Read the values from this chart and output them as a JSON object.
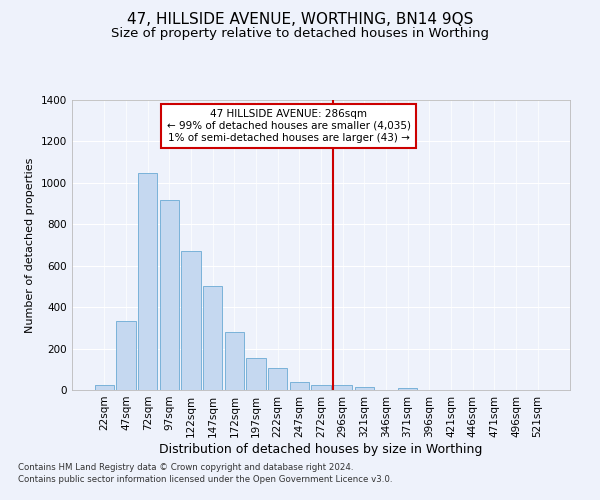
{
  "title": "47, HILLSIDE AVENUE, WORTHING, BN14 9QS",
  "subtitle": "Size of property relative to detached houses in Worthing",
  "xlabel": "Distribution of detached houses by size in Worthing",
  "ylabel": "Number of detached properties",
  "categories": [
    "22sqm",
    "47sqm",
    "72sqm",
    "97sqm",
    "122sqm",
    "147sqm",
    "172sqm",
    "197sqm",
    "222sqm",
    "247sqm",
    "272sqm",
    "296sqm",
    "321sqm",
    "346sqm",
    "371sqm",
    "396sqm",
    "421sqm",
    "446sqm",
    "471sqm",
    "496sqm",
    "521sqm"
  ],
  "values": [
    22,
    335,
    1050,
    915,
    670,
    500,
    278,
    155,
    105,
    38,
    23,
    22,
    16,
    0,
    12,
    0,
    0,
    0,
    0,
    0,
    0
  ],
  "bar_color": "#c5d8f0",
  "bar_edge_color": "#6aaad4",
  "bar_width": 0.9,
  "vline_x": 10.56,
  "vline_color": "#cc0000",
  "annotation_label": "47 HILLSIDE AVENUE: 286sqm",
  "annotation_line1": "← 99% of detached houses are smaller (4,035)",
  "annotation_line2": "1% of semi-detached houses are larger (43) →",
  "background_color": "#eef2fb",
  "grid_color": "#ffffff",
  "ylim": [
    0,
    1400
  ],
  "yticks": [
    0,
    200,
    400,
    600,
    800,
    1000,
    1200,
    1400
  ],
  "title_fontsize": 11,
  "subtitle_fontsize": 9.5,
  "tick_fontsize": 7.5,
  "ylabel_fontsize": 8,
  "xlabel_fontsize": 9,
  "annotation_fontsize": 7.5,
  "footer_line1": "Contains HM Land Registry data © Crown copyright and database right 2024.",
  "footer_line2": "Contains public sector information licensed under the Open Government Licence v3.0.",
  "footer_fontsize": 6.2
}
